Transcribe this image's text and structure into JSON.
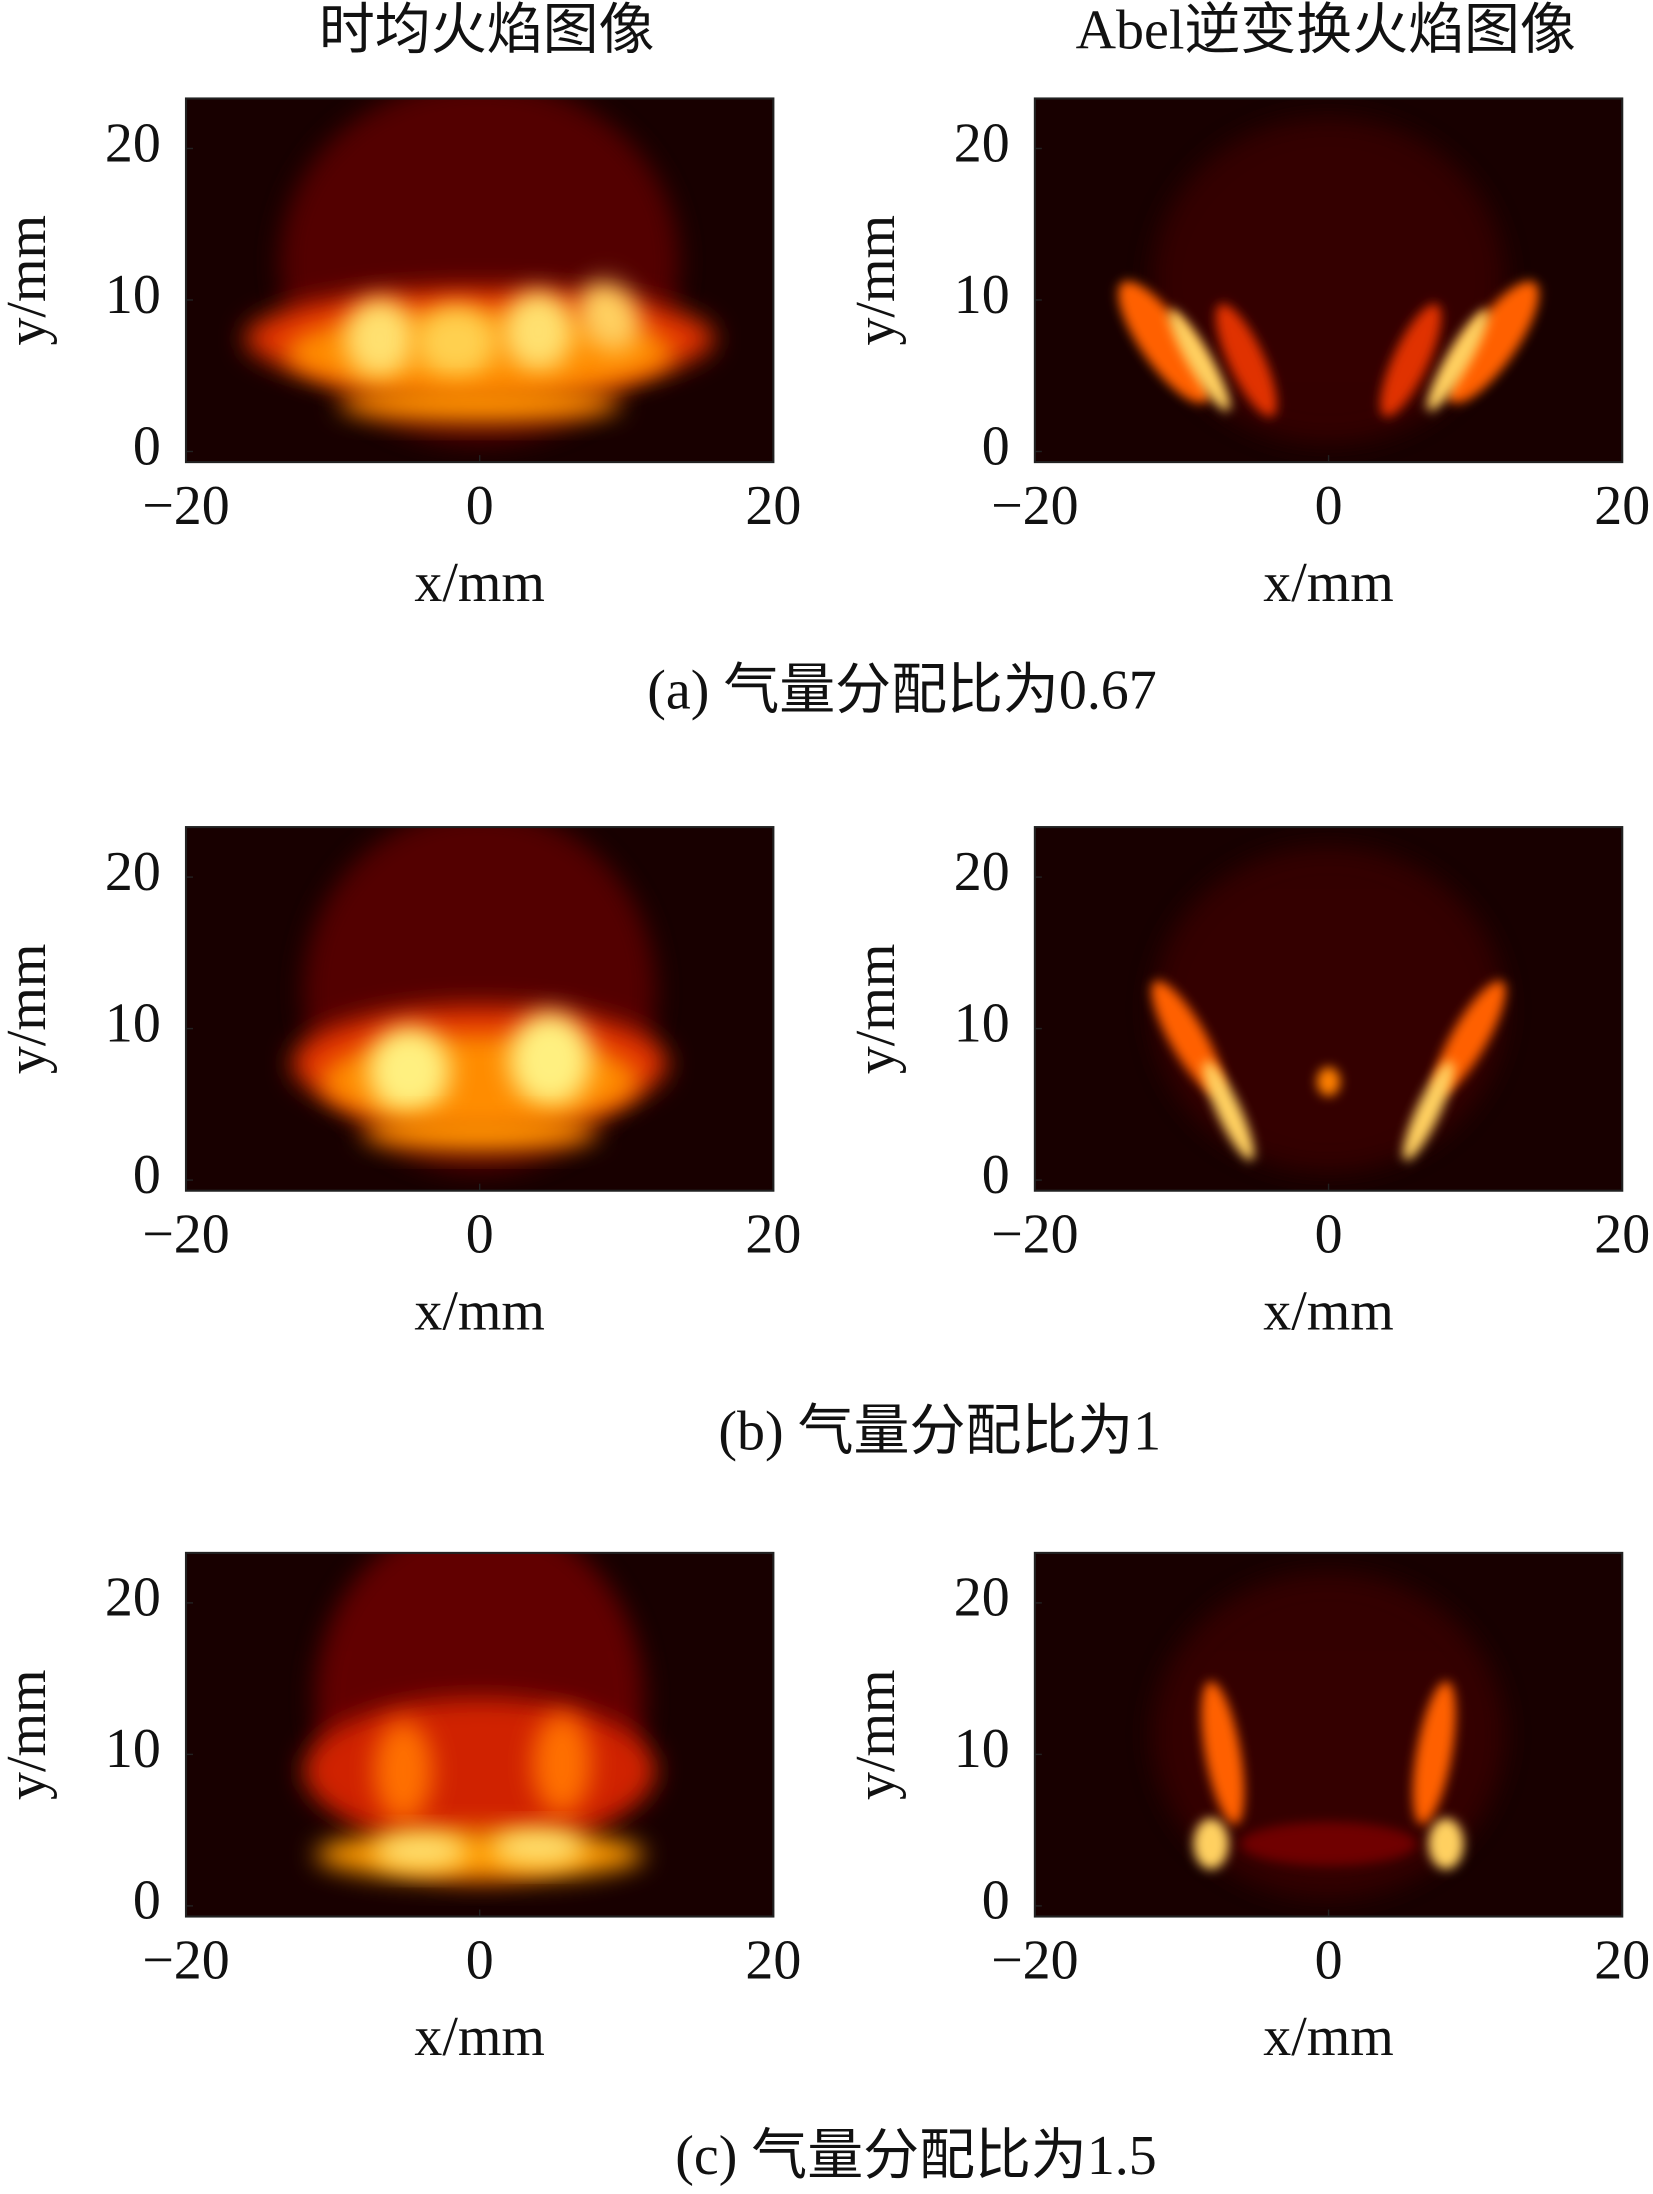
{
  "chart_data": [
    {
      "type": "image",
      "title": "时均火焰图像",
      "xlabel": "x/mm",
      "ylabel": "y/mm",
      "xlim": [
        -20,
        20
      ],
      "ylim": [
        -0.7,
        23.3
      ],
      "xticks": [
        {
          "value": -20,
          "label": "−20"
        },
        0,
        20
      ],
      "yticks": [
        0,
        10,
        20
      ]
    },
    {
      "type": "abel",
      "title": "Abel逆变换火焰图像",
      "xlabel": "x/mm",
      "ylabel": "y/mm",
      "xlim": [
        -20,
        20
      ],
      "ylim": [
        -0.7,
        23.3
      ],
      "xticks": [
        {
          "value": -20,
          "label": "−20"
        },
        0,
        20
      ],
      "yticks": [
        0,
        10,
        20
      ]
    },
    {
      "type": "image",
      "xlabel": "x/mm",
      "ylabel": "y/mm",
      "xlim": [
        -20,
        20
      ],
      "ylim": [
        -0.7,
        23.3
      ],
      "xticks": [
        {
          "value": -20,
          "label": "−20"
        },
        0,
        20
      ],
      "yticks": [
        0,
        10,
        20
      ]
    },
    {
      "type": "abel",
      "xlabel": "x/mm",
      "ylabel": "y/mm",
      "xlim": [
        -20,
        20
      ],
      "ylim": [
        -0.7,
        23.3
      ],
      "xticks": [
        {
          "value": -20,
          "label": "−20"
        },
        0,
        20
      ],
      "yticks": [
        0,
        10,
        20
      ]
    },
    {
      "type": "image",
      "xlabel": "x/mm",
      "ylabel": "y/mm",
      "xlim": [
        -20,
        20
      ],
      "ylim": [
        -0.7,
        23.3
      ],
      "xticks": [
        {
          "value": -20,
          "label": "−20"
        },
        0,
        20
      ],
      "yticks": [
        0,
        10,
        20
      ]
    },
    {
      "type": "abel",
      "xlabel": "x/mm",
      "ylabel": "y/mm",
      "xlim": [
        -20,
        20
      ],
      "ylim": [
        -0.7,
        23.3
      ],
      "xticks": [
        {
          "value": -20,
          "label": "−20"
        },
        0,
        20
      ],
      "yticks": [
        0,
        10,
        20
      ]
    }
  ],
  "captions": [
    "(a) 气量分配比为0.67",
    "(b) 气量分配比为1",
    "(c) 气量分配比为1.5"
  ]
}
